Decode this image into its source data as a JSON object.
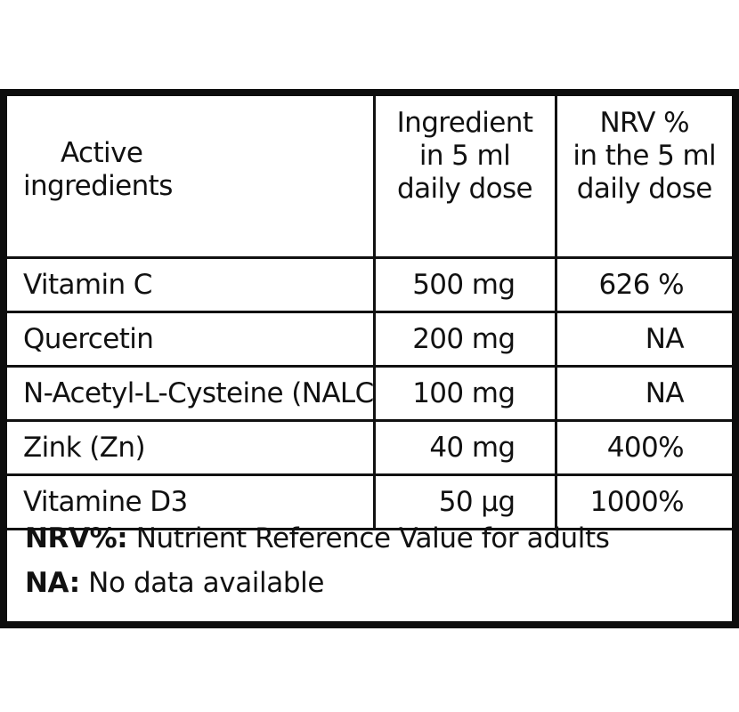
{
  "table": {
    "headers": {
      "active": [
        "Active",
        "ingredients"
      ],
      "ingredient": [
        "Ingredient",
        "in 5 ml",
        "daily dose"
      ],
      "nrv": [
        "NRV %",
        "in the 5 ml",
        "daily dose"
      ]
    },
    "rows": [
      {
        "name": "Vitamin C",
        "amount": "500 mg",
        "nrv": "626 %"
      },
      {
        "name": "Quercetin",
        "amount": "200 mg",
        "nrv": "NA"
      },
      {
        "name": "N-Acetyl-L-Cysteine (NALC)",
        "amount": "100 mg",
        "nrv": "NA"
      },
      {
        "name": "Zink (Zn)",
        "amount": "40 mg",
        "nrv": "400%"
      },
      {
        "name": "Vitamine D3",
        "amount": "50 µg",
        "nrv": "1000%"
      }
    ]
  },
  "footnotes": [
    {
      "term": "NRV%:",
      "text": " Nutrient Reference Value for adults"
    },
    {
      "term": "NA:",
      "text": " No data available"
    }
  ],
  "colors": {
    "border": "#111111",
    "text": "#111111",
    "background": "#ffffff"
  }
}
